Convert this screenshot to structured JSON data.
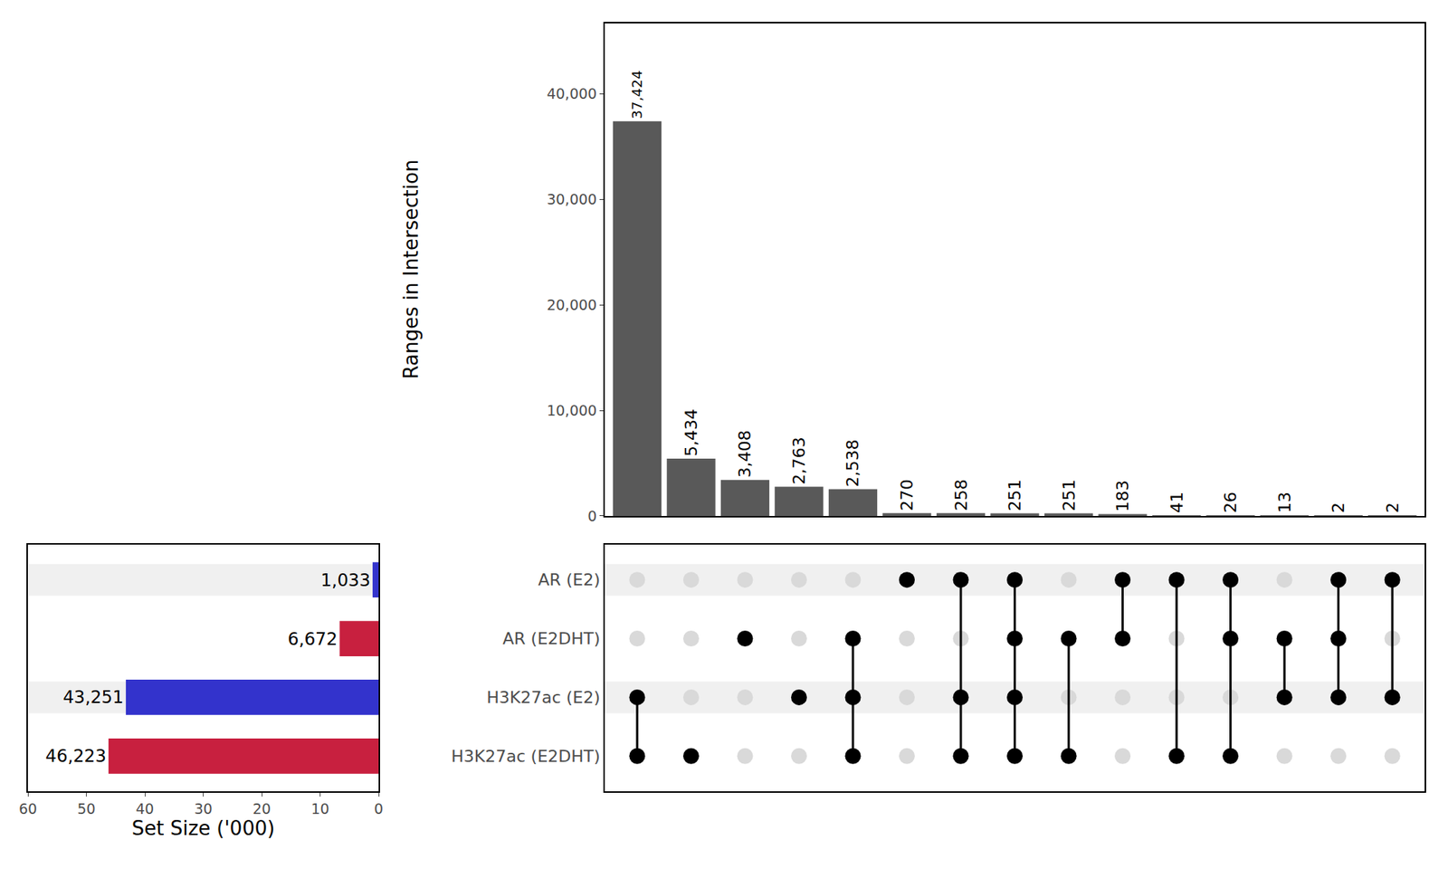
{
  "chart_data": [
    {
      "type": "bar",
      "y_label": "Ranges in Intersection",
      "categories": [
        null,
        null,
        null,
        null,
        null,
        null,
        null,
        null,
        null,
        null,
        null,
        null,
        null,
        null,
        null
      ],
      "values": [
        37424,
        5434,
        3408,
        2763,
        2538,
        270,
        258,
        251,
        251,
        183,
        41,
        26,
        13,
        2,
        2
      ],
      "value_labels": [
        "37,424",
        "5,434",
        "3,408",
        "2,763",
        "2,538",
        "270",
        "258",
        "251",
        "251",
        "183",
        "41",
        "26",
        "13",
        "2",
        "2"
      ],
      "data_labels": true,
      "color": "#595959",
      "ylim": [
        0,
        46700
      ],
      "yticks": [
        0,
        {
          "value": 10000,
          "label": "10,000"
        },
        {
          "value": 20000,
          "label": "20,000"
        },
        {
          "value": 30000,
          "label": "30,000"
        },
        {
          "value": 40000,
          "label": "40,000"
        }
      ],
      "tick_labels": "y",
      "grid": false
    },
    {
      "type": "bar",
      "orientation": "horizontal",
      "x_label": "Set Size ('000)",
      "categories": [
        "AR (E2)",
        "AR (E2DHT)",
        "H3K27ac (E2)",
        "H3K27ac (E2DHT)"
      ],
      "values": [
        1.033,
        6.672,
        43.251,
        46.223
      ],
      "value_labels": [
        "1,033",
        "6,672",
        "43,251",
        "46,223"
      ],
      "data_labels": true,
      "colors": [
        "#3333cc",
        "#c8203f",
        "#3333cc",
        "#c8203f"
      ],
      "xlim": [
        60,
        0
      ],
      "xticks": [
        0,
        10,
        20,
        30,
        40,
        50,
        60
      ],
      "tick_labels": "x",
      "grid": false
    },
    {
      "type": "scatter",
      "marker": "circle",
      "color": "#000000",
      "sets": [
        "AR (E2)",
        "AR (E2DHT)",
        "H3K27ac (E2)",
        "H3K27ac (E2DHT)"
      ],
      "membership": [
        [
          "H3K27ac (E2)",
          "H3K27ac (E2DHT)"
        ],
        [
          "H3K27ac (E2DHT)"
        ],
        [
          "AR (E2DHT)"
        ],
        [
          "H3K27ac (E2)"
        ],
        [
          "AR (E2DHT)",
          "H3K27ac (E2)",
          "H3K27ac (E2DHT)"
        ],
        [
          "AR (E2)"
        ],
        [
          "AR (E2)",
          "H3K27ac (E2)",
          "H3K27ac (E2DHT)"
        ],
        [
          "AR (E2)",
          "AR (E2DHT)",
          "H3K27ac (E2)",
          "H3K27ac (E2DHT)"
        ],
        [
          "AR (E2DHT)",
          "H3K27ac (E2DHT)"
        ],
        [
          "AR (E2)",
          "AR (E2DHT)"
        ],
        [
          "AR (E2)",
          "H3K27ac (E2DHT)"
        ],
        [
          "AR (E2)",
          "AR (E2DHT)",
          "H3K27ac (E2DHT)"
        ],
        [
          "AR (E2DHT)",
          "H3K27ac (E2)"
        ],
        [
          "AR (E2)",
          "AR (E2DHT)",
          "H3K27ac (E2)"
        ],
        [
          "AR (E2)",
          "H3K27ac (E2)"
        ]
      ],
      "tick_labels": "y",
      "grid": false
    }
  ]
}
